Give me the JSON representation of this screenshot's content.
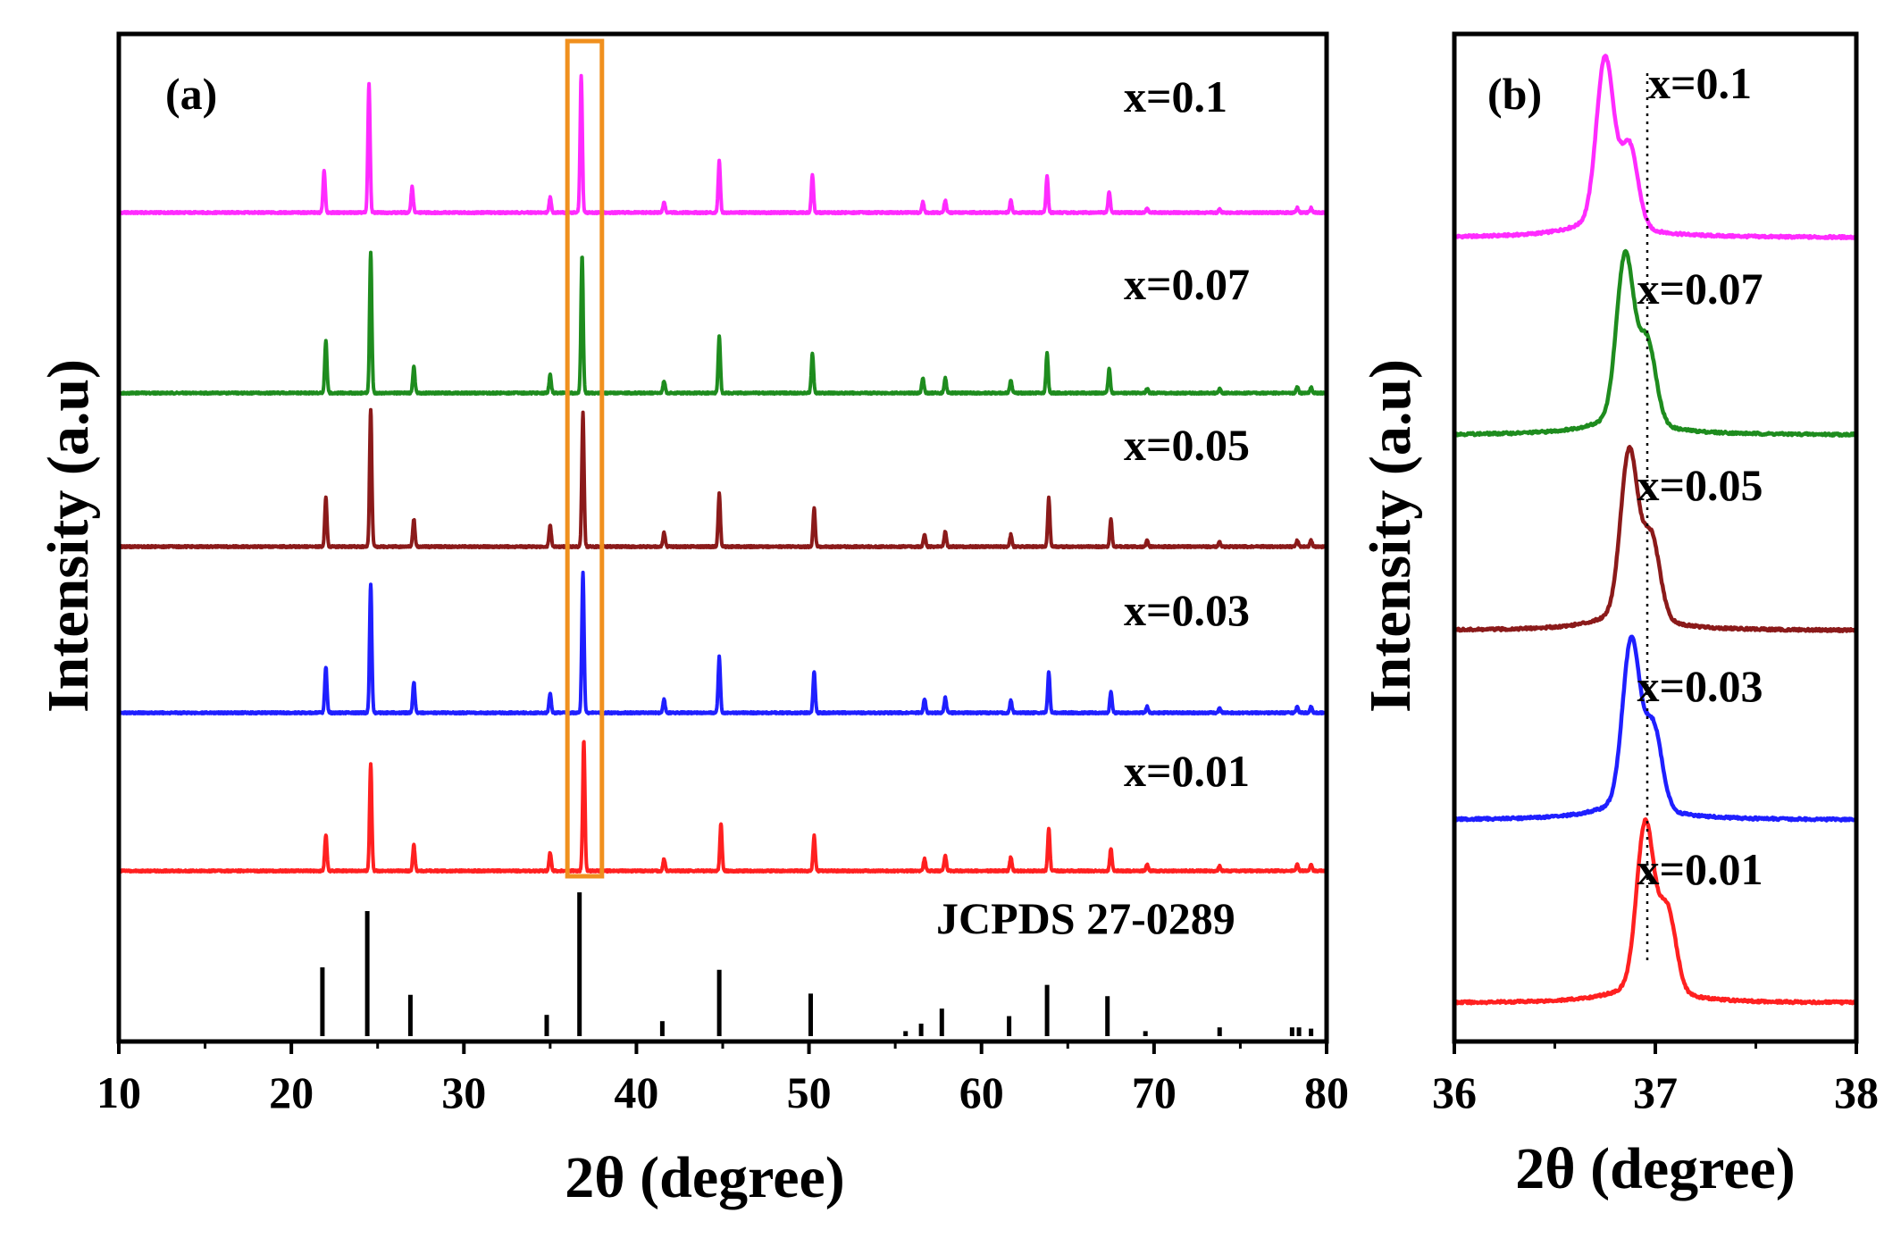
{
  "chart_data": [
    {
      "panel": "(a)",
      "type": "line",
      "xlabel": "2θ (degree)",
      "ylabel": "Intensity (a.u)",
      "xlim": [
        10,
        80
      ],
      "xticks": [
        10,
        20,
        30,
        40,
        50,
        60,
        70,
        80
      ],
      "grid": false,
      "highlight_box": {
        "x_range": [
          36,
          38
        ],
        "color": "#f0901e"
      },
      "series": [
        {
          "name": "x=0.1",
          "color": "#ff2bff",
          "offset": 4,
          "peaks": [
            [
              21.9,
              0.28
            ],
            [
              24.5,
              0.85
            ],
            [
              27.0,
              0.17
            ],
            [
              35.0,
              0.1
            ],
            [
              36.8,
              0.9
            ],
            [
              41.6,
              0.07
            ],
            [
              44.8,
              0.34
            ],
            [
              50.2,
              0.25
            ],
            [
              56.6,
              0.07
            ],
            [
              57.9,
              0.08
            ],
            [
              61.7,
              0.08
            ],
            [
              63.8,
              0.24
            ],
            [
              67.4,
              0.14
            ],
            [
              69.6,
              0.03
            ],
            [
              73.8,
              0.02
            ],
            [
              78.3,
              0.03
            ],
            [
              79.1,
              0.03
            ]
          ]
        },
        {
          "name": "x=0.07",
          "color": "#1e8c1e",
          "offset": 3,
          "peaks": [
            [
              22.0,
              0.34
            ],
            [
              24.6,
              0.92
            ],
            [
              27.1,
              0.17
            ],
            [
              35.0,
              0.12
            ],
            [
              36.85,
              0.9
            ],
            [
              41.6,
              0.08
            ],
            [
              44.8,
              0.37
            ],
            [
              50.2,
              0.26
            ],
            [
              56.6,
              0.1
            ],
            [
              57.9,
              0.1
            ],
            [
              61.7,
              0.08
            ],
            [
              63.8,
              0.26
            ],
            [
              67.4,
              0.16
            ],
            [
              69.6,
              0.03
            ],
            [
              73.8,
              0.03
            ],
            [
              78.3,
              0.04
            ],
            [
              79.1,
              0.04
            ]
          ]
        },
        {
          "name": "x=0.05",
          "color": "#8b1a1a",
          "offset": 2,
          "peaks": [
            [
              22.0,
              0.32
            ],
            [
              24.6,
              0.9
            ],
            [
              27.1,
              0.18
            ],
            [
              35.0,
              0.14
            ],
            [
              36.9,
              0.88
            ],
            [
              41.6,
              0.09
            ],
            [
              44.8,
              0.35
            ],
            [
              50.3,
              0.25
            ],
            [
              56.7,
              0.08
            ],
            [
              57.9,
              0.1
            ],
            [
              61.7,
              0.08
            ],
            [
              63.9,
              0.32
            ],
            [
              67.5,
              0.18
            ],
            [
              69.6,
              0.04
            ],
            [
              73.8,
              0.03
            ],
            [
              78.3,
              0.04
            ],
            [
              79.1,
              0.04
            ]
          ]
        },
        {
          "name": "x=0.03",
          "color": "#1f1fff",
          "offset": 1,
          "peaks": [
            [
              22.0,
              0.3
            ],
            [
              24.6,
              0.85
            ],
            [
              27.1,
              0.2
            ],
            [
              35.0,
              0.13
            ],
            [
              36.9,
              0.93
            ],
            [
              41.6,
              0.09
            ],
            [
              44.8,
              0.37
            ],
            [
              50.3,
              0.27
            ],
            [
              56.7,
              0.09
            ],
            [
              57.9,
              0.1
            ],
            [
              61.7,
              0.08
            ],
            [
              63.9,
              0.27
            ],
            [
              67.5,
              0.14
            ],
            [
              69.6,
              0.04
            ],
            [
              73.8,
              0.03
            ],
            [
              78.3,
              0.04
            ],
            [
              79.1,
              0.04
            ]
          ]
        },
        {
          "name": "x=0.01",
          "color": "#ff2020",
          "offset": 0,
          "peaks": [
            [
              22.0,
              0.24
            ],
            [
              24.6,
              0.7
            ],
            [
              27.1,
              0.17
            ],
            [
              35.0,
              0.12
            ],
            [
              36.95,
              0.86
            ],
            [
              41.6,
              0.08
            ],
            [
              44.9,
              0.31
            ],
            [
              50.3,
              0.23
            ],
            [
              56.7,
              0.08
            ],
            [
              57.9,
              0.1
            ],
            [
              61.7,
              0.09
            ],
            [
              63.9,
              0.28
            ],
            [
              67.5,
              0.15
            ],
            [
              69.6,
              0.04
            ],
            [
              73.8,
              0.03
            ],
            [
              78.3,
              0.04
            ],
            [
              79.1,
              0.04
            ]
          ]
        }
      ],
      "reference": {
        "name": "JCPDS 27-0289",
        "color": "#000000",
        "sticks": [
          [
            21.8,
            0.55
          ],
          [
            24.4,
            1.0
          ],
          [
            26.9,
            0.33
          ],
          [
            34.8,
            0.17
          ],
          [
            36.7,
            1.15
          ],
          [
            41.5,
            0.12
          ],
          [
            44.8,
            0.53
          ],
          [
            50.1,
            0.34
          ],
          [
            55.6,
            0.04
          ],
          [
            56.5,
            0.1
          ],
          [
            57.7,
            0.22
          ],
          [
            61.6,
            0.16
          ],
          [
            63.8,
            0.41
          ],
          [
            67.3,
            0.32
          ],
          [
            69.5,
            0.04
          ],
          [
            73.8,
            0.07
          ],
          [
            78.0,
            0.07
          ],
          [
            78.4,
            0.07
          ],
          [
            79.1,
            0.06
          ]
        ]
      }
    },
    {
      "panel": "(b)",
      "type": "line",
      "xlabel": "2θ (degree)",
      "ylabel": "Intensity (a.u)",
      "xlim": [
        36,
        38
      ],
      "xticks": [
        36,
        37,
        38
      ],
      "grid": false,
      "reference_line": {
        "x": 36.96,
        "style": "dotted"
      },
      "series": [
        {
          "name": "x=0.1",
          "color": "#ff2bff",
          "offset": 4,
          "peak_center": 36.75,
          "shoulder": 36.87
        },
        {
          "name": "x=0.07",
          "color": "#1e8c1e",
          "offset": 3,
          "peak_center": 36.85,
          "shoulder": 36.96
        },
        {
          "name": "x=0.05",
          "color": "#8b1a1a",
          "offset": 2,
          "peak_center": 36.87,
          "shoulder": 36.98
        },
        {
          "name": "x=0.03",
          "color": "#1f1fff",
          "offset": 1,
          "peak_center": 36.88,
          "shoulder": 36.99
        },
        {
          "name": "x=0.01",
          "color": "#ff2020",
          "offset": 0,
          "peak_center": 36.95,
          "shoulder": 37.06
        }
      ]
    }
  ]
}
